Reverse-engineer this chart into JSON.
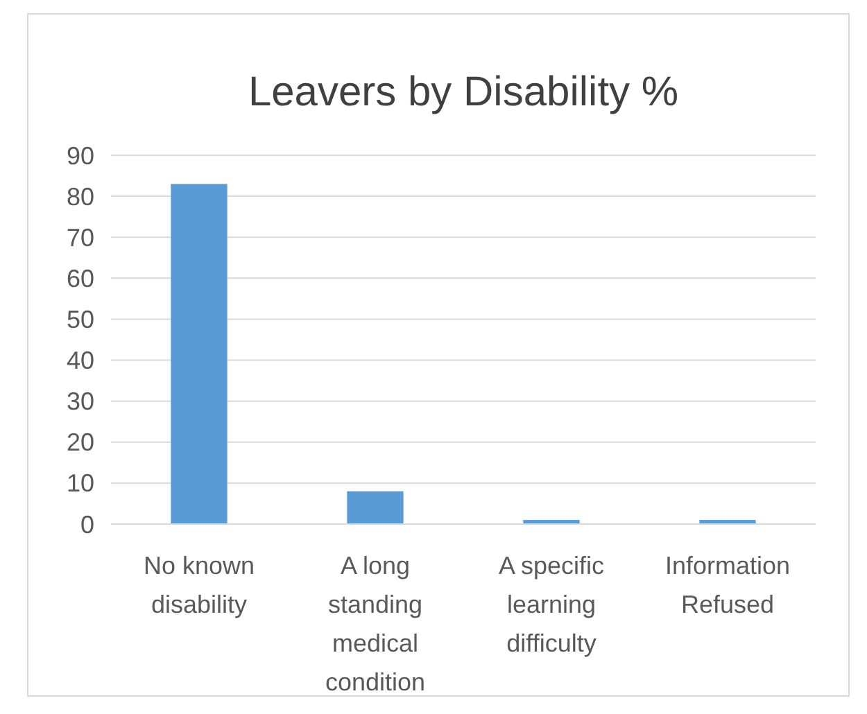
{
  "chart_data": {
    "type": "bar",
    "title": "Leavers by Disability %",
    "categories": [
      "No known disability",
      "A long standing medical condition",
      "A specific learning difficulty",
      "Information Refused"
    ],
    "values": [
      83,
      8,
      1,
      1
    ],
    "color": "#5b9bd5",
    "ylim": [
      0,
      90
    ],
    "yticks": [
      0,
      10,
      20,
      30,
      40,
      50,
      60,
      70,
      80,
      90
    ],
    "grid": "y"
  }
}
